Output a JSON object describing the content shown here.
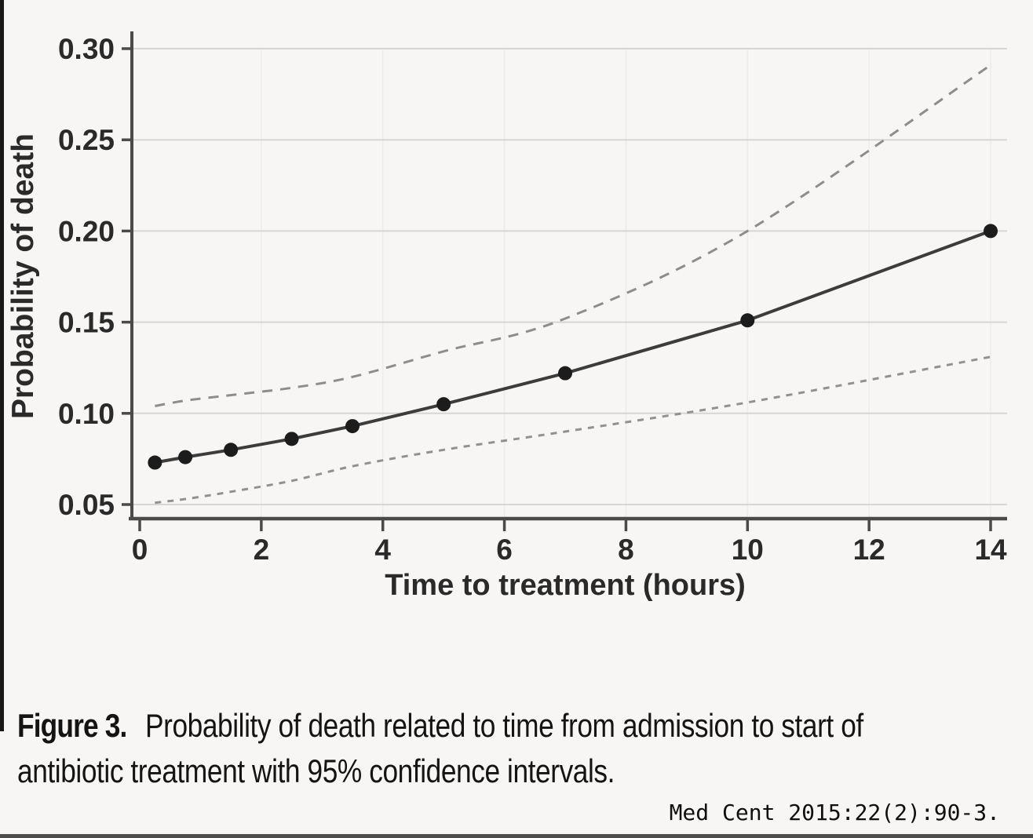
{
  "figure": {
    "caption_prefix": "Figure 3.",
    "caption_line1": "Probability of death related to time from admission to start of",
    "caption_line2": "antibiotic treatment with 95% confidence intervals.",
    "citation": "Med Cent 2015:22(2):90-3."
  },
  "chart_data": {
    "type": "line",
    "title": "",
    "xlabel": "Time to treatment (hours)",
    "ylabel": "Probability of death",
    "xlim": [
      0,
      14
    ],
    "ylim": [
      0.05,
      0.3
    ],
    "xticks": [
      0,
      2,
      4,
      6,
      8,
      10,
      12,
      14
    ],
    "yticks": [
      0.05,
      0.1,
      0.15,
      0.2,
      0.25,
      0.3
    ],
    "grid": "horizontal-major",
    "legend_position": "none",
    "x": [
      0.25,
      0.75,
      1.5,
      2.5,
      3.5,
      5,
      7,
      10,
      14
    ],
    "series": [
      {
        "name": "probability-of-death",
        "style": "solid",
        "markers": true,
        "color": "#3c3c3c",
        "marker_color": "#1c1c1c",
        "values": [
          0.073,
          0.076,
          0.08,
          0.086,
          0.093,
          0.105,
          0.122,
          0.151,
          0.2
        ]
      },
      {
        "name": "upper-95pct-ci",
        "style": "dashed",
        "markers": false,
        "color": "#8e8d8c",
        "dash": "13 10",
        "values": [
          0.104,
          0.107,
          0.11,
          0.114,
          0.12,
          0.134,
          0.152,
          0.2,
          0.291
        ]
      },
      {
        "name": "lower-95pct-ci",
        "style": "dashed",
        "markers": false,
        "color": "#929190",
        "dash": "8 8",
        "values": [
          0.051,
          0.053,
          0.057,
          0.063,
          0.071,
          0.08,
          0.09,
          0.106,
          0.131
        ]
      }
    ]
  },
  "colors": {
    "background": "#f7f6f4",
    "axis": "#4a4a4a",
    "gridline": "#d7d6d4",
    "minor_vertical_gridline": "#edecea",
    "tick_label": "#2a2a2a",
    "caption_text": "#141414"
  }
}
